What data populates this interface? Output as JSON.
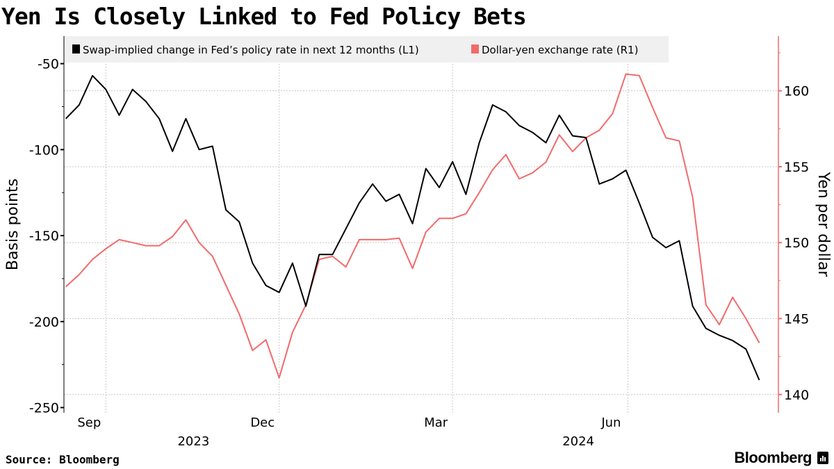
{
  "title": "Yen Is Closely Linked to Fed Policy Bets",
  "source": "Source: Bloomberg",
  "logo": "Bloomberg",
  "chart_data": {
    "type": "line",
    "title": "Yen Is Closely Linked to Fed Policy Bets",
    "x_range": [
      "2023-08-10",
      "2024-08-11"
    ],
    "x_ticks": [
      {
        "date": "2023-09-01",
        "label": "Sep"
      },
      {
        "date": "2023-12-01",
        "label": "Dec"
      },
      {
        "date": "2024-03-01",
        "label": "Mar"
      },
      {
        "date": "2024-06-01",
        "label": "Jun"
      }
    ],
    "x_years": [
      {
        "date": "2023-10-17",
        "label": "2023"
      },
      {
        "date": "2024-05-06",
        "label": "2024"
      }
    ],
    "y_left": {
      "label": "Basis points",
      "range": [
        -253,
        -34
      ],
      "ticks": [
        -50,
        -100,
        -150,
        -200,
        -250
      ],
      "minor_ticks": [
        -75,
        -125,
        -175,
        -225
      ]
    },
    "y_right": {
      "label": "Yen per dollar",
      "range": [
        138.8,
        163.6
      ],
      "ticks": [
        160,
        155,
        150,
        145,
        140
      ],
      "minor_ticks": [
        162.5,
        157.5,
        152.5,
        147.5,
        142.5
      ]
    },
    "grid": true,
    "legend_placement": "top",
    "colors": {
      "fed": "#000000",
      "yen": "#f26a6a",
      "legend_bg": "#f0f0f0",
      "grid": "#c8c8c8"
    },
    "dates": [
      "2023-08-11",
      "2023-08-18",
      "2023-08-25",
      "2023-09-01",
      "2023-09-08",
      "2023-09-15",
      "2023-09-22",
      "2023-09-29",
      "2023-10-06",
      "2023-10-13",
      "2023-10-20",
      "2023-10-27",
      "2023-11-03",
      "2023-11-10",
      "2023-11-17",
      "2023-11-24",
      "2023-12-01",
      "2023-12-08",
      "2023-12-15",
      "2023-12-22",
      "2023-12-29",
      "2024-01-05",
      "2024-01-12",
      "2024-01-19",
      "2024-01-26",
      "2024-02-02",
      "2024-02-09",
      "2024-02-16",
      "2024-02-23",
      "2024-03-01",
      "2024-03-08",
      "2024-03-15",
      "2024-03-22",
      "2024-03-29",
      "2024-04-05",
      "2024-04-12",
      "2024-04-19",
      "2024-04-26",
      "2024-05-03",
      "2024-05-10",
      "2024-05-17",
      "2024-05-24",
      "2024-05-31",
      "2024-06-07",
      "2024-06-14",
      "2024-06-21",
      "2024-06-28",
      "2024-07-05",
      "2024-07-12",
      "2024-07-19",
      "2024-07-26",
      "2024-08-02",
      "2024-08-09"
    ],
    "series": [
      {
        "name": "Swap-implied change in Fed’s policy rate in next 12 months (L1)",
        "axis": "left",
        "values": [
          -82,
          -74,
          -57,
          -65,
          -80,
          -65,
          -72,
          -82,
          -101,
          -82,
          -100,
          -98,
          -135,
          -142,
          -166,
          -179,
          -183,
          -166,
          -191,
          -161,
          -161,
          -146,
          -131,
          -120,
          -130,
          -126,
          -143,
          -111,
          -122,
          -107,
          -126,
          -96,
          -74,
          -78,
          -86,
          -90,
          -96,
          -80,
          -92,
          -93,
          -120,
          -117,
          -112,
          -131,
          -151,
          -157,
          -153,
          -191,
          -204,
          -208,
          -211,
          -216,
          -234
        ]
      },
      {
        "name": "Dollar-yen exchange rate (R1)",
        "axis": "right",
        "values": [
          147.1,
          147.9,
          148.9,
          149.6,
          150.2,
          150.0,
          149.8,
          149.8,
          150.4,
          151.5,
          150.0,
          149.1,
          147.2,
          145.3,
          142.9,
          143.6,
          141.1,
          144.1,
          145.9,
          148.9,
          149.1,
          148.4,
          150.2,
          150.2,
          150.2,
          150.3,
          148.3,
          150.7,
          151.6,
          151.6,
          151.9,
          153.3,
          154.8,
          155.8,
          154.2,
          154.6,
          155.3,
          157.1,
          156.0,
          156.9,
          157.4,
          158.5,
          161.1,
          161.0,
          158.9,
          156.9,
          156.7,
          153.0,
          145.9,
          144.6,
          146.4,
          145.0,
          143.4
        ]
      }
    ]
  }
}
